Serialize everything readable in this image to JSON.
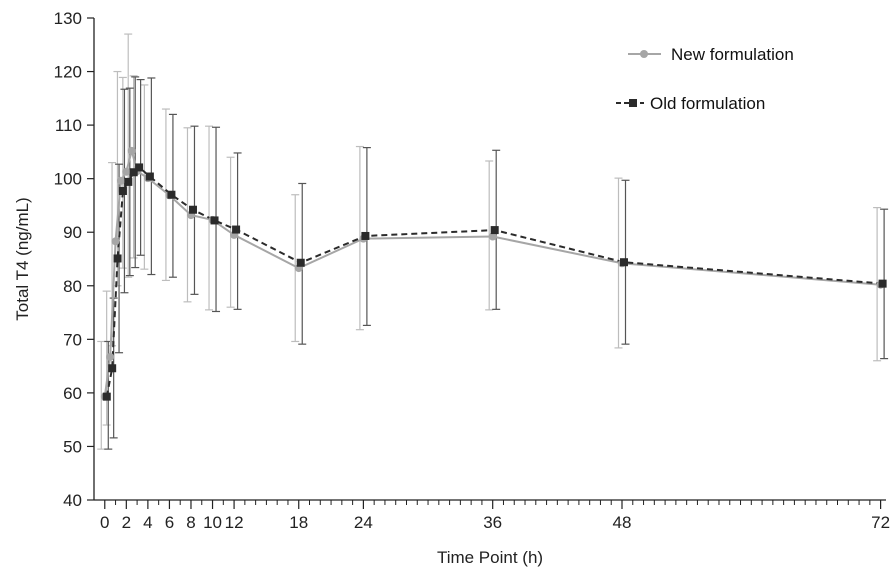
{
  "chart_data": {
    "type": "line",
    "xlabel": "Time Point (h)",
    "ylabel": "Total T4  (ng/mL)",
    "ylim": [
      40,
      130
    ],
    "yticks": [
      40,
      50,
      60,
      70,
      80,
      90,
      100,
      110,
      120,
      130
    ],
    "xlim": [
      -1,
      72.5
    ],
    "xticks": [
      0,
      2,
      4,
      6,
      8,
      10,
      12,
      18,
      24,
      36,
      48,
      72
    ],
    "xtick_labels": [
      "0",
      "2",
      "4",
      "6",
      "8",
      "10",
      "12",
      "18",
      "24",
      "36",
      "48",
      "72"
    ],
    "minor_xticks": [
      1,
      3,
      5,
      7,
      9,
      11,
      13,
      14,
      15,
      16,
      17,
      19,
      20,
      21,
      22,
      23,
      25,
      26,
      27,
      28,
      29,
      30,
      31,
      32,
      33,
      34,
      35,
      37,
      38,
      39,
      40,
      41,
      42,
      43,
      44,
      45,
      46,
      47,
      49,
      50,
      51,
      52,
      53,
      54,
      55,
      56,
      57,
      58,
      59,
      60,
      61,
      62,
      63,
      64,
      65,
      66,
      67,
      68,
      69,
      70,
      71
    ],
    "legend_position": "top-right",
    "series": [
      {
        "name": "New formulation",
        "line_style": "solid",
        "marker": "circle",
        "color": "#a6a6a6",
        "x": [
          0,
          0.5,
          1,
          1.5,
          2,
          2.5,
          3,
          4,
          6,
          8,
          10,
          12,
          18,
          24,
          36,
          48,
          72
        ],
        "y": [
          59.3,
          66.7,
          88.3,
          99.6,
          101.3,
          105.2,
          101.4,
          100.1,
          96.9,
          93.2,
          92.3,
          89.5,
          83.3,
          88.8,
          89.2,
          84.2,
          80.2
        ],
        "err_high": [
          69.6,
          79,
          103,
          120,
          118.9,
          127,
          119.2,
          117.5,
          113,
          109.5,
          109.8,
          104,
          97,
          106,
          103.3,
          100.1,
          94.6
        ],
        "err_low": [
          49.5,
          54,
          68.8,
          80,
          83.3,
          81.6,
          85.2,
          83.1,
          81,
          77,
          75.5,
          76,
          69.6,
          71.8,
          75.5,
          68.4,
          66
        ]
      },
      {
        "name": "Old formulation",
        "line_style": "dashed",
        "marker": "square",
        "color": "#2b2b2b",
        "x": [
          0,
          0.5,
          1,
          1.5,
          2,
          2.5,
          3,
          4,
          6,
          8,
          10,
          12,
          18,
          24,
          36,
          48,
          72
        ],
        "y": [
          59.3,
          64.6,
          85.1,
          97.7,
          99.4,
          101.2,
          102.1,
          100.4,
          97,
          94.2,
          92.2,
          90.5,
          84.3,
          89.3,
          90.4,
          84.4,
          80.4
        ],
        "err_high": [
          69.6,
          77.7,
          102.7,
          116.7,
          116.9,
          119,
          118.5,
          118.8,
          112,
          109.8,
          109.6,
          104.8,
          99.1,
          105.8,
          105.3,
          99.7,
          94.3
        ],
        "err_low": [
          49.5,
          51.6,
          67.5,
          78.7,
          81.9,
          83.4,
          85.7,
          82.1,
          81.6,
          78.4,
          75.2,
          75.6,
          69.1,
          72.6,
          75.6,
          69.1,
          66.4
        ]
      }
    ]
  }
}
